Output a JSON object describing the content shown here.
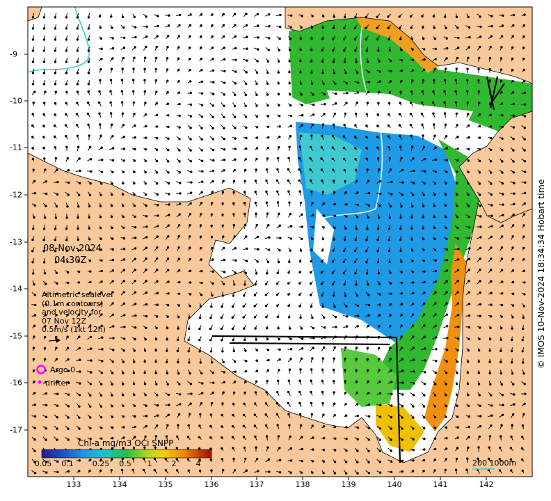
{
  "map": {
    "date": "08-Nov-2024",
    "time": "04:30Z",
    "legend_lines": [
      "Altimetric sealevel",
      "(0.1m contours)",
      "and velocity for",
      "07 Nov 12Z",
      "0.5m/s (1kt 12h)"
    ],
    "argo_label": "Argo 0",
    "drifter_label": "drifter",
    "colorbar_title": "Chl-a mg/m3 OCi SNPP",
    "colorbar_ticks": [
      "0.05",
      "0.1",
      "0.25",
      "0.5",
      "1",
      "2",
      "4"
    ],
    "scale_label": "200  1000m",
    "copyright": "© IMOS 10-Nov-2024 18:34:34 Hobart time",
    "lon_ticks": [
      "133",
      "134",
      "135",
      "136",
      "137",
      "138",
      "139",
      "140",
      "141",
      "142"
    ],
    "lat_ticks": [
      "-9",
      "-10",
      "-11",
      "-12",
      "-13",
      "-14",
      "-15",
      "-16",
      "-17"
    ],
    "colors": {
      "land": "#f9c99b",
      "ocean": "#ffffff",
      "contour": "#3ad0d0",
      "argo": "#ff00ff",
      "chl_low": "#1e90e0",
      "chl_mid": "#18b818",
      "chl_high": "#e07010"
    }
  }
}
